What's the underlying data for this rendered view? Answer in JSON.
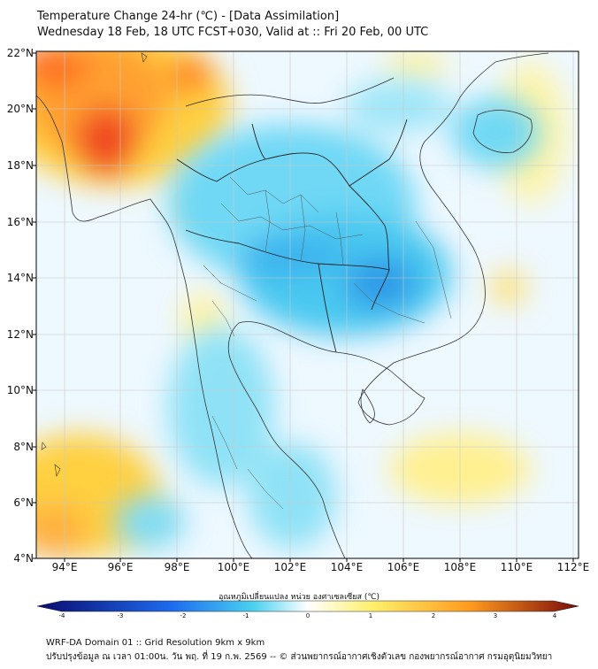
{
  "title": {
    "line1": "Temperature Change 24-hr (℃) - [Data Assimilation]",
    "line2": "Wednesday 18 Feb, 18 UTC FCST+030, Valid at :: Fri 20 Feb, 00 UTC"
  },
  "map": {
    "lat_labels": [
      "22°N",
      "20°N",
      "18°N",
      "16°N",
      "14°N",
      "12°N",
      "10°N",
      "8°N",
      "6°N",
      "4°N"
    ],
    "lon_labels": [
      "94°E",
      "96°E",
      "98°E",
      "100°E",
      "102°E",
      "104°E",
      "106°E",
      "108°E",
      "110°E",
      "112°E"
    ]
  },
  "colorbar": {
    "title": "อุณหภูมิเปลี่ยนแปลง หน่วย องศาเซลเซียส (℃)",
    "ticks": [
      "-4",
      "-3",
      "-2",
      "-1",
      "0",
      "1",
      "2",
      "3",
      "4"
    ],
    "colors": {
      "min": "#0a0a6e",
      "cold": "#1e6cf0",
      "cool": "#4ad2f0",
      "neutral": "#ffffff",
      "warm": "#fff06a",
      "hot": "#ff9a1e",
      "max": "#7a0a0a"
    }
  },
  "footer": {
    "line1": "WRF-DA Domain 01 :: Grid Resolution 9km x 9km",
    "line2": "ปรับปรุงข้อมูล ณ เวลา 01:00น. วัน พฤ. ที่ 19 ก.พ. 2569 -- © ส่วนพยากรณ์อากาศเชิงตัวเลข กองพยากรณ์อากาศ กรมอุตุนิยมวิทยา"
  }
}
